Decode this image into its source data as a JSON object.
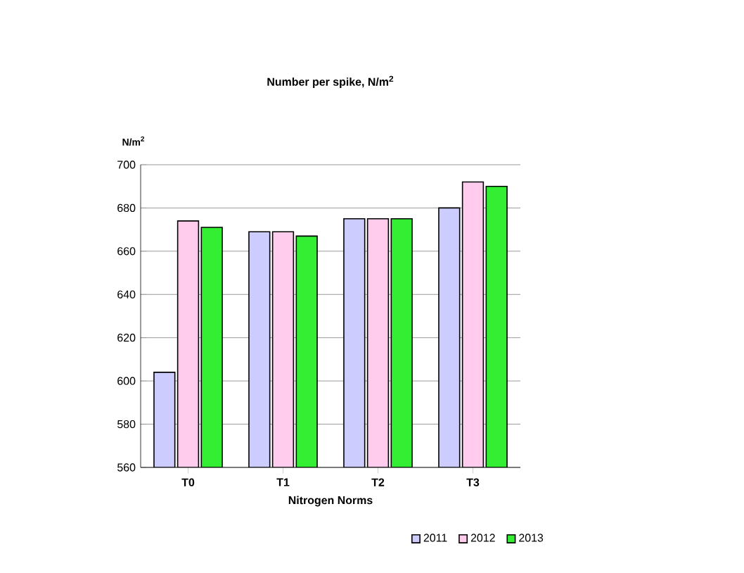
{
  "chart_data": {
    "type": "bar",
    "title": "Number per spike, N/m$^{2}$",
    "xlabel": "Nitrogen Norms",
    "ylabel": "N/m$^{2}$",
    "categories": [
      "T0",
      "T1",
      "T2",
      "T3"
    ],
    "series": [
      {
        "name": "2011",
        "color": "#ccccff",
        "values": [
          604,
          669,
          675,
          680
        ]
      },
      {
        "name": "2012",
        "color": "#ffccee",
        "values": [
          674,
          669,
          675,
          692
        ]
      },
      {
        "name": "2013",
        "color": "#33ee33",
        "values": [
          671,
          667,
          675,
          690
        ]
      }
    ],
    "ylim": [
      560,
      700
    ],
    "yticks": [
      560,
      580,
      600,
      620,
      640,
      660,
      680,
      700
    ],
    "grid": "y",
    "legend": "bottom right"
  }
}
